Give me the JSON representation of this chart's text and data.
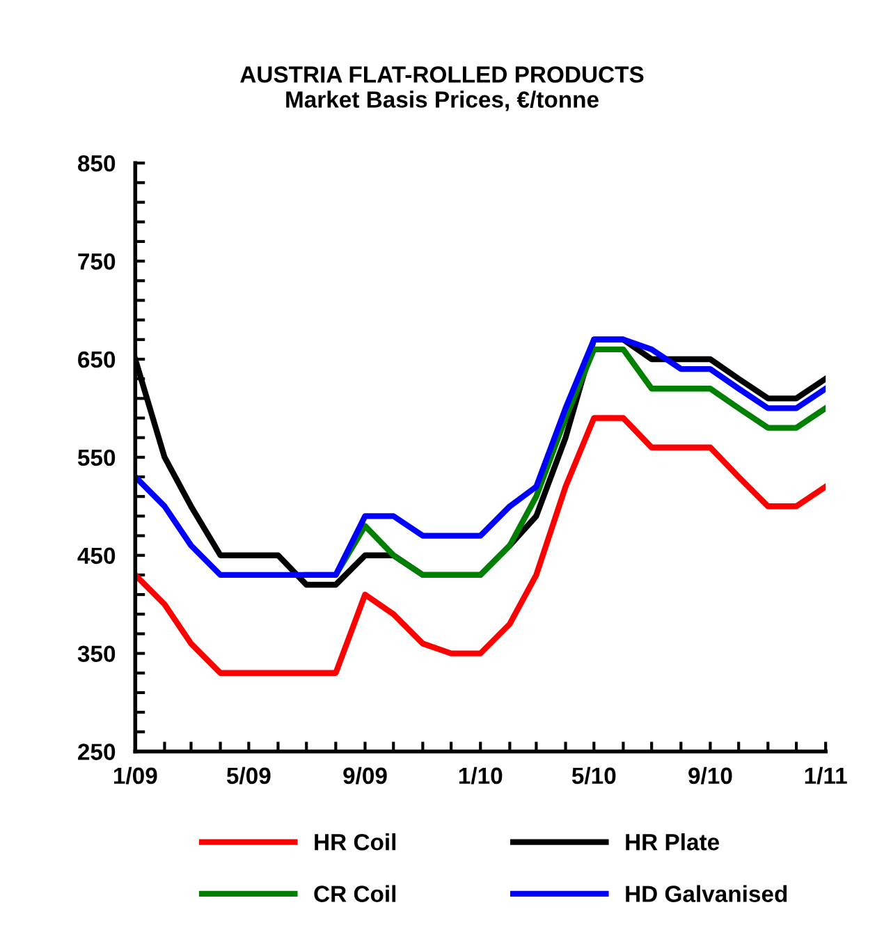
{
  "chart_data": {
    "type": "line",
    "title": "AUSTRIA FLAT-ROLLED PRODUCTS\nMarket Basis Prices, €/tonne",
    "x": [
      "2009-01",
      "2009-02",
      "2009-03",
      "2009-04",
      "2009-05",
      "2009-06",
      "2009-07",
      "2009-08",
      "2009-09",
      "2009-10",
      "2009-11",
      "2009-12",
      "2010-01",
      "2010-02",
      "2010-03",
      "2010-04",
      "2010-05",
      "2010-06",
      "2010-07",
      "2010-08",
      "2010-09",
      "2010-10",
      "2010-11",
      "2010-12",
      "2011-01"
    ],
    "series": [
      {
        "name": "HR Coil",
        "color": "#ff0000",
        "values": [
          430,
          400,
          360,
          330,
          330,
          330,
          330,
          330,
          410,
          390,
          360,
          350,
          350,
          380,
          430,
          520,
          590,
          590,
          560,
          560,
          560,
          530,
          500,
          500,
          520
        ]
      },
      {
        "name": "HR Plate",
        "color": "#000000",
        "values": [
          650,
          550,
          500,
          450,
          450,
          450,
          420,
          420,
          450,
          450,
          430,
          430,
          430,
          460,
          490,
          570,
          670,
          670,
          650,
          650,
          650,
          630,
          610,
          610,
          630
        ]
      },
      {
        "name": "CR Coil",
        "color": "#008000",
        "values": [
          null,
          null,
          null,
          null,
          null,
          null,
          430,
          430,
          480,
          450,
          430,
          430,
          430,
          460,
          510,
          590,
          660,
          660,
          620,
          620,
          620,
          600,
          580,
          580,
          600
        ]
      },
      {
        "name": "HD Galvanised",
        "color": "#0000ff",
        "values": [
          530,
          500,
          460,
          430,
          430,
          430,
          430,
          430,
          490,
          490,
          470,
          470,
          470,
          500,
          520,
          600,
          670,
          670,
          660,
          640,
          640,
          620,
          600,
          600,
          620
        ]
      }
    ],
    "xlim": [
      "2009-01",
      "2011-01"
    ],
    "xticks": [
      {
        "value": "2009-01",
        "label": "1/09"
      },
      {
        "value": "2009-02",
        "label": null
      },
      {
        "value": "2009-03",
        "label": null
      },
      {
        "value": "2009-04",
        "label": null
      },
      {
        "value": "2009-05",
        "label": "5/09"
      },
      {
        "value": "2009-06",
        "label": null
      },
      {
        "value": "2009-07",
        "label": null
      },
      {
        "value": "2009-08",
        "label": null
      },
      {
        "value": "2009-09",
        "label": "9/09"
      },
      {
        "value": "2009-10",
        "label": null
      },
      {
        "value": "2009-11",
        "label": null
      },
      {
        "value": "2009-12",
        "label": null
      },
      {
        "value": "2010-01",
        "label": "1/10"
      },
      {
        "value": "2010-02",
        "label": null
      },
      {
        "value": "2010-03",
        "label": null
      },
      {
        "value": "2010-04",
        "label": null
      },
      {
        "value": "2010-05",
        "label": "5/10"
      },
      {
        "value": "2010-06",
        "label": null
      },
      {
        "value": "2010-07",
        "label": null
      },
      {
        "value": "2010-08",
        "label": null
      },
      {
        "value": "2010-09",
        "label": "9/10"
      },
      {
        "value": "2010-10",
        "label": null
      },
      {
        "value": "2010-11",
        "label": null
      },
      {
        "value": "2010-12",
        "label": null
      },
      {
        "value": "2011-01",
        "label": "1/11"
      }
    ],
    "ylim": [
      250,
      850
    ],
    "yticks": [
      250,
      {
        "value": 270,
        "label": null
      },
      {
        "value": 290,
        "label": null
      },
      {
        "value": 310,
        "label": null
      },
      {
        "value": 330,
        "label": null
      },
      350,
      {
        "value": 370,
        "label": null
      },
      {
        "value": 390,
        "label": null
      },
      {
        "value": 410,
        "label": null
      },
      {
        "value": 430,
        "label": null
      },
      450,
      {
        "value": 470,
        "label": null
      },
      {
        "value": 490,
        "label": null
      },
      {
        "value": 510,
        "label": null
      },
      {
        "value": 530,
        "label": null
      },
      550,
      {
        "value": 570,
        "label": null
      },
      {
        "value": 590,
        "label": null
      },
      {
        "value": 610,
        "label": null
      },
      {
        "value": 630,
        "label": null
      },
      650,
      {
        "value": 670,
        "label": null
      },
      {
        "value": 690,
        "label": null
      },
      {
        "value": 710,
        "label": null
      },
      {
        "value": 730,
        "label": null
      },
      750,
      {
        "value": 770,
        "label": null
      },
      {
        "value": 790,
        "label": null
      },
      {
        "value": 810,
        "label": null
      },
      {
        "value": 830,
        "label": null
      },
      850
    ],
    "grid": false,
    "legend": "bottom",
    "marker": "none",
    "line_style": "solid"
  }
}
